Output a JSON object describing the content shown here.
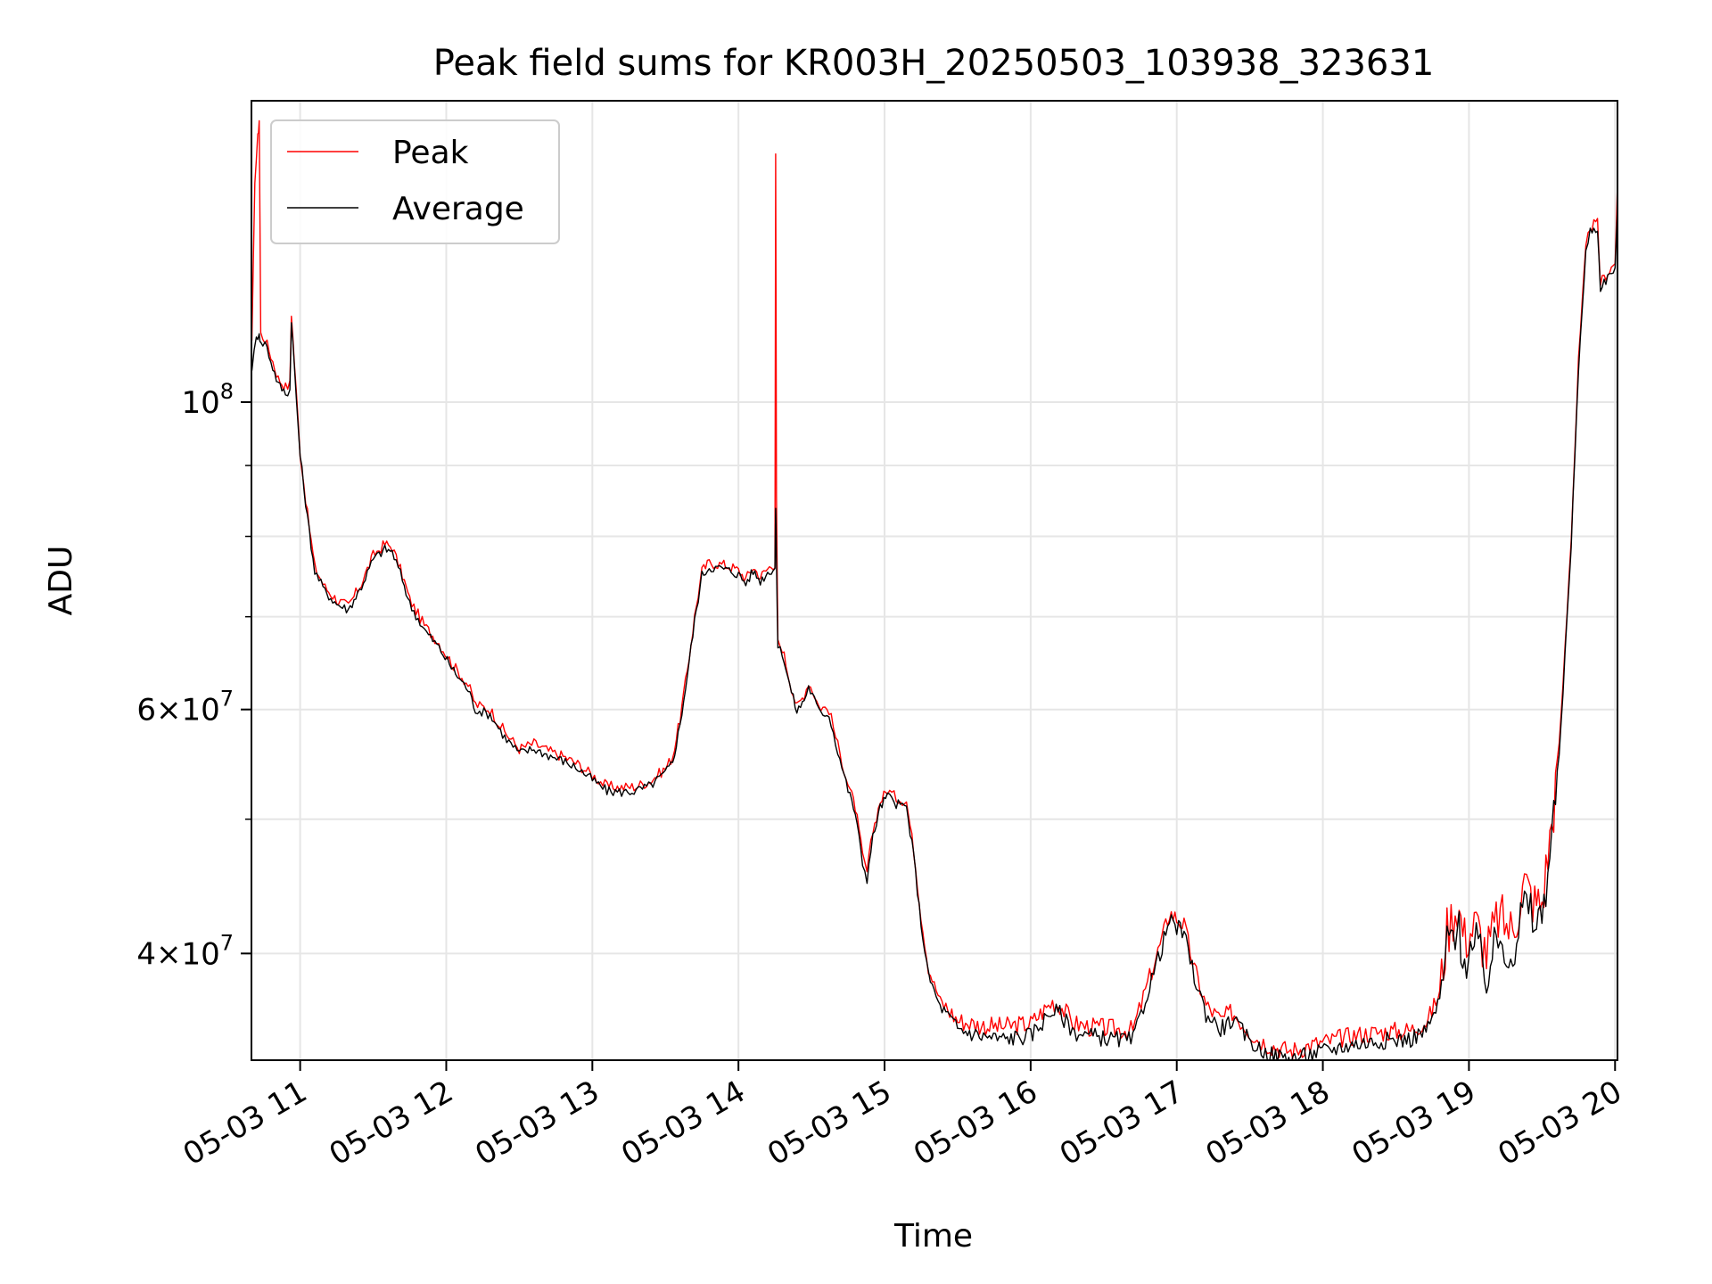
{
  "chart_data": {
    "type": "line",
    "title": "Peak field sums for KR003H_20250503_103938_323631",
    "xlabel": "Time",
    "ylabel": "ADU",
    "yscale": "log",
    "xlim": [
      "2025-05-03 10:40",
      "2025-05-03 20:01"
    ],
    "ylim": [
      33500000,
      165000000
    ],
    "x_ticks": [
      "05-03 11",
      "05-03 12",
      "05-03 13",
      "05-03 14",
      "05-03 15",
      "05-03 16",
      "05-03 17",
      "05-03 18",
      "05-03 19",
      "05-03 20"
    ],
    "y_ticks": [
      {
        "value": 40000000,
        "base": "4",
        "exp": "7"
      },
      {
        "value": 60000000,
        "base": "6",
        "exp": "7"
      },
      {
        "value": 100000000,
        "base": "10",
        "exp": "8"
      }
    ],
    "grid": true,
    "legend_position": "upper-left",
    "time_unit_note": "x values are hours of day on 2025-05-03",
    "series": [
      {
        "name": "Peak",
        "color": "#ff0000",
        "points": [
          [
            10.67,
            110000000
          ],
          [
            10.69,
            145000000
          ],
          [
            10.71,
            155000000
          ],
          [
            10.72,
            160000000
          ],
          [
            10.73,
            112000000
          ],
          [
            10.76,
            111000000
          ],
          [
            10.8,
            108000000
          ],
          [
            10.85,
            104000000
          ],
          [
            10.9,
            102500000
          ],
          [
            10.93,
            103000000
          ],
          [
            10.94,
            116000000
          ],
          [
            10.96,
            107000000
          ],
          [
            11.0,
            92000000
          ],
          [
            11.05,
            83000000
          ],
          [
            11.1,
            76000000
          ],
          [
            11.17,
            73500000
          ],
          [
            11.25,
            72000000
          ],
          [
            11.33,
            71200000
          ],
          [
            11.42,
            74000000
          ],
          [
            11.5,
            77500000
          ],
          [
            11.58,
            79000000
          ],
          [
            11.63,
            78600000
          ],
          [
            11.7,
            75000000
          ],
          [
            11.75,
            72000000
          ],
          [
            11.85,
            69000000
          ],
          [
            11.95,
            67000000
          ],
          [
            12.05,
            64500000
          ],
          [
            12.15,
            62500000
          ],
          [
            12.2,
            60500000
          ],
          [
            12.3,
            60000000
          ],
          [
            12.4,
            57800000
          ],
          [
            12.5,
            56200000
          ],
          [
            12.6,
            56700000
          ],
          [
            12.7,
            56000000
          ],
          [
            12.8,
            55500000
          ],
          [
            12.9,
            54800000
          ],
          [
            13.0,
            53800000
          ],
          [
            13.1,
            52800000
          ],
          [
            13.2,
            52700000
          ],
          [
            13.3,
            52800000
          ],
          [
            13.4,
            53300000
          ],
          [
            13.5,
            54400000
          ],
          [
            13.55,
            55500000
          ],
          [
            13.6,
            59000000
          ],
          [
            13.65,
            64000000
          ],
          [
            13.7,
            70000000
          ],
          [
            13.75,
            75500000
          ],
          [
            13.8,
            76600000
          ],
          [
            13.9,
            76300000
          ],
          [
            13.95,
            76000000
          ],
          [
            14.0,
            75600000
          ],
          [
            14.05,
            74500000
          ],
          [
            14.1,
            76000000
          ],
          [
            14.15,
            74800000
          ],
          [
            14.2,
            75800000
          ],
          [
            14.25,
            76500000
          ],
          [
            14.255,
            150000000
          ],
          [
            14.26,
            85000000
          ],
          [
            14.27,
            67000000
          ],
          [
            14.3,
            66500000
          ],
          [
            14.35,
            63000000
          ],
          [
            14.4,
            60200000
          ],
          [
            14.45,
            61500000
          ],
          [
            14.48,
            62800000
          ],
          [
            14.52,
            61500000
          ],
          [
            14.55,
            60300000
          ],
          [
            14.62,
            60000000
          ],
          [
            14.68,
            56500000
          ],
          [
            14.75,
            53000000
          ],
          [
            14.8,
            51000000
          ],
          [
            14.85,
            47000000
          ],
          [
            14.88,
            45800000
          ],
          [
            14.92,
            49000000
          ],
          [
            14.97,
            51500000
          ],
          [
            15.02,
            52500000
          ],
          [
            15.08,
            51800000
          ],
          [
            15.15,
            51500000
          ],
          [
            15.2,
            47500000
          ],
          [
            15.25,
            42500000
          ],
          [
            15.3,
            39000000
          ],
          [
            15.38,
            37000000
          ],
          [
            15.5,
            35800000
          ],
          [
            15.65,
            35500000
          ],
          [
            15.8,
            35400000
          ],
          [
            16.0,
            35600000
          ],
          [
            16.08,
            36300000
          ],
          [
            16.15,
            36900000
          ],
          [
            16.2,
            36700000
          ],
          [
            16.3,
            35600000
          ],
          [
            16.4,
            35400000
          ],
          [
            16.55,
            35300000
          ],
          [
            16.7,
            35200000
          ],
          [
            16.8,
            38000000
          ],
          [
            16.9,
            41000000
          ],
          [
            16.95,
            42800000
          ],
          [
            17.0,
            42400000
          ],
          [
            17.05,
            41900000
          ],
          [
            17.12,
            39000000
          ],
          [
            17.2,
            36700000
          ],
          [
            17.3,
            35800000
          ],
          [
            17.38,
            36300000
          ],
          [
            17.45,
            35600000
          ],
          [
            17.55,
            34700000
          ],
          [
            17.65,
            34300000
          ],
          [
            17.78,
            34000000
          ],
          [
            17.9,
            34300000
          ],
          [
            18.05,
            34600000
          ],
          [
            18.2,
            34900000
          ],
          [
            18.4,
            35100000
          ],
          [
            18.6,
            35200000
          ],
          [
            18.72,
            35800000
          ],
          [
            18.8,
            37500000
          ],
          [
            18.85,
            41500000
          ],
          [
            18.92,
            43500000
          ],
          [
            18.97,
            41000000
          ],
          [
            19.05,
            42000000
          ],
          [
            19.12,
            40000000
          ],
          [
            19.2,
            42500000
          ],
          [
            19.3,
            41500000
          ],
          [
            19.38,
            45000000
          ],
          [
            19.45,
            43500000
          ],
          [
            19.5,
            43500000
          ],
          [
            19.58,
            51000000
          ],
          [
            19.63,
            59000000
          ],
          [
            19.7,
            80000000
          ],
          [
            19.75,
            107000000
          ],
          [
            19.8,
            129000000
          ],
          [
            19.83,
            134000000
          ],
          [
            19.88,
            134500000
          ],
          [
            19.9,
            122000000
          ],
          [
            19.95,
            124000000
          ],
          [
            20.0,
            126000000
          ],
          [
            20.02,
            147000000
          ],
          [
            20.03,
            162000000
          ]
        ]
      },
      {
        "name": "Average",
        "color": "#000000",
        "points": [
          [
            10.67,
            106000000
          ],
          [
            10.7,
            111000000
          ],
          [
            10.72,
            112500000
          ],
          [
            10.73,
            110000000
          ],
          [
            10.76,
            110500000
          ],
          [
            10.8,
            107000000
          ],
          [
            10.85,
            103000000
          ],
          [
            10.9,
            101500000
          ],
          [
            10.93,
            102000000
          ],
          [
            10.94,
            115000000
          ],
          [
            10.96,
            106000000
          ],
          [
            11.0,
            91500000
          ],
          [
            11.05,
            82500000
          ],
          [
            11.1,
            75500000
          ],
          [
            11.17,
            73000000
          ],
          [
            11.25,
            71500000
          ],
          [
            11.33,
            70800000
          ],
          [
            11.42,
            73600000
          ],
          [
            11.5,
            77000000
          ],
          [
            11.58,
            78300000
          ],
          [
            11.63,
            78000000
          ],
          [
            11.7,
            74500000
          ],
          [
            11.75,
            71500000
          ],
          [
            11.85,
            68500000
          ],
          [
            11.95,
            66500000
          ],
          [
            12.05,
            64000000
          ],
          [
            12.15,
            62000000
          ],
          [
            12.2,
            60000000
          ],
          [
            12.3,
            59500000
          ],
          [
            12.4,
            57300000
          ],
          [
            12.5,
            55800000
          ],
          [
            12.6,
            56200000
          ],
          [
            12.7,
            55600000
          ],
          [
            12.8,
            55100000
          ],
          [
            12.9,
            54400000
          ],
          [
            13.0,
            53400000
          ],
          [
            13.1,
            52400000
          ],
          [
            13.2,
            52300000
          ],
          [
            13.3,
            52400000
          ],
          [
            13.4,
            52900000
          ],
          [
            13.5,
            54000000
          ],
          [
            13.55,
            55000000
          ],
          [
            13.6,
            58500000
          ],
          [
            13.65,
            63500000
          ],
          [
            13.7,
            69500000
          ],
          [
            13.75,
            75000000
          ],
          [
            13.8,
            76000000
          ],
          [
            13.9,
            75800000
          ],
          [
            13.95,
            75500000
          ],
          [
            14.0,
            75100000
          ],
          [
            14.05,
            74000000
          ],
          [
            14.1,
            75500000
          ],
          [
            14.15,
            74300000
          ],
          [
            14.2,
            75300000
          ],
          [
            14.25,
            76000000
          ],
          [
            14.255,
            84000000
          ],
          [
            14.26,
            77000000
          ],
          [
            14.27,
            66500000
          ],
          [
            14.3,
            66000000
          ],
          [
            14.35,
            62500000
          ],
          [
            14.4,
            59800000
          ],
          [
            14.45,
            61000000
          ],
          [
            14.48,
            62300000
          ],
          [
            14.52,
            61000000
          ],
          [
            14.55,
            59800000
          ],
          [
            14.62,
            59500000
          ],
          [
            14.68,
            56000000
          ],
          [
            14.75,
            52500000
          ],
          [
            14.8,
            50500000
          ],
          [
            14.85,
            46500000
          ],
          [
            14.88,
            45300000
          ],
          [
            14.92,
            48500000
          ],
          [
            14.97,
            51000000
          ],
          [
            15.02,
            52000000
          ],
          [
            15.08,
            51300000
          ],
          [
            15.15,
            51000000
          ],
          [
            15.2,
            47000000
          ],
          [
            15.25,
            42000000
          ],
          [
            15.3,
            38600000
          ],
          [
            15.38,
            36600000
          ],
          [
            15.5,
            35300000
          ],
          [
            15.65,
            34900000
          ],
          [
            15.8,
            34700000
          ],
          [
            16.0,
            34900000
          ],
          [
            16.08,
            35700000
          ],
          [
            16.15,
            36400000
          ],
          [
            16.2,
            36200000
          ],
          [
            16.3,
            35100000
          ],
          [
            16.4,
            34900000
          ],
          [
            16.55,
            34700000
          ],
          [
            16.7,
            34600000
          ],
          [
            16.8,
            37500000
          ],
          [
            16.9,
            40500000
          ],
          [
            16.95,
            42200000
          ],
          [
            17.0,
            41800000
          ],
          [
            17.05,
            41300000
          ],
          [
            17.12,
            38500000
          ],
          [
            17.2,
            36200000
          ],
          [
            17.3,
            35300000
          ],
          [
            17.38,
            35800000
          ],
          [
            17.45,
            35100000
          ],
          [
            17.55,
            34200000
          ],
          [
            17.65,
            33800000
          ],
          [
            17.78,
            33600000
          ],
          [
            17.9,
            33800000
          ],
          [
            18.05,
            34100000
          ],
          [
            18.2,
            34400000
          ],
          [
            18.4,
            34600000
          ],
          [
            18.6,
            34700000
          ],
          [
            18.72,
            35300000
          ],
          [
            18.8,
            37000000
          ],
          [
            18.85,
            40500000
          ],
          [
            18.92,
            42000000
          ],
          [
            18.97,
            39500000
          ],
          [
            19.05,
            40500000
          ],
          [
            19.12,
            38500000
          ],
          [
            19.2,
            41000000
          ],
          [
            19.3,
            40000000
          ],
          [
            19.38,
            43500000
          ],
          [
            19.45,
            42000000
          ],
          [
            19.5,
            42500000
          ],
          [
            19.58,
            50000000
          ],
          [
            19.63,
            58000000
          ],
          [
            19.7,
            79000000
          ],
          [
            19.75,
            106000000
          ],
          [
            19.8,
            128000000
          ],
          [
            19.83,
            133000000
          ],
          [
            19.88,
            133500000
          ],
          [
            19.9,
            121000000
          ],
          [
            19.95,
            123000000
          ],
          [
            20.0,
            125000000
          ],
          [
            20.02,
            140000000
          ],
          [
            20.03,
            150000000
          ]
        ]
      }
    ]
  }
}
